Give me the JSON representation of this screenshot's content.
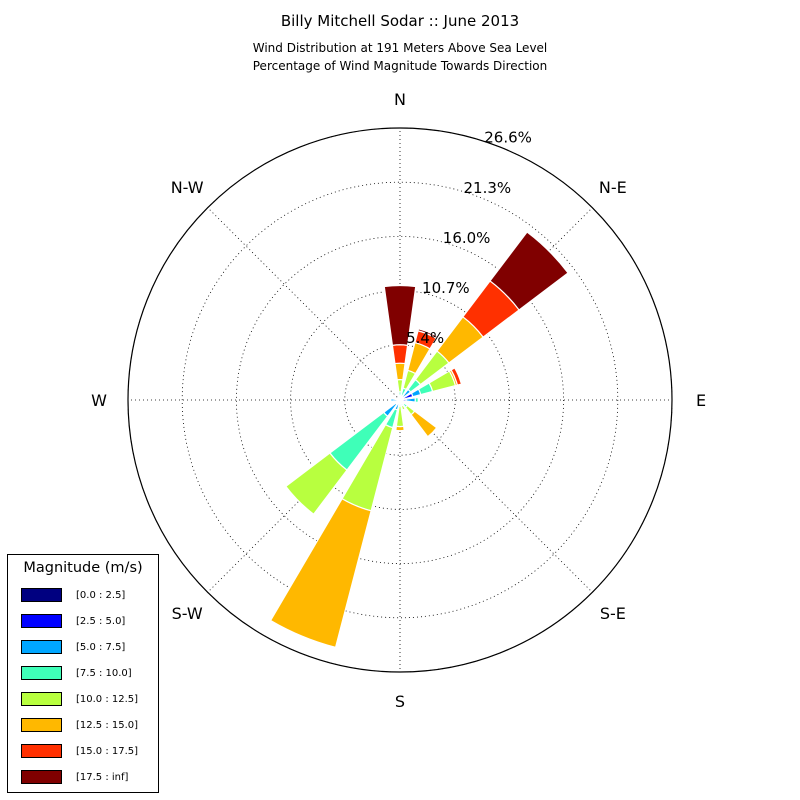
{
  "titles": {
    "main": "Billy Mitchell Sodar :: June 2013",
    "sub1": "Wind Distribution at 191 Meters Above Sea Level",
    "sub2": "Percentage of Wind Magnitude Towards Direction"
  },
  "chart_data": {
    "type": "windrose",
    "rmax": 26.6,
    "radial_ticks": [
      "5.4%",
      "10.7%",
      "16.0%",
      "21.3%",
      "26.6%"
    ],
    "radial_tick_values": [
      5.4,
      10.7,
      16.0,
      21.3,
      26.6
    ],
    "direction_labels": [
      "N",
      "N-E",
      "E",
      "S-E",
      "S",
      "S-W",
      "W",
      "N-W"
    ],
    "legend_title": "Magnitude (m/s)",
    "bins": [
      "[0.0 : 2.5]",
      "[2.5 : 5.0]",
      "[5.0 : 7.5]",
      "[7.5 : 10.0]",
      "[10.0 : 12.5]",
      "[12.5 : 15.0]",
      "[15.0 : 17.5]",
      "[17.5 : inf]"
    ],
    "bin_colors": [
      "#000080",
      "#0000ff",
      "#00a6ff",
      "#3fffb8",
      "#b8ff3f",
      "#ffb800",
      "#ff3000",
      "#800000"
    ],
    "direction_angles": [
      0,
      22.5,
      45,
      67.5,
      90,
      112.5,
      135,
      157.5,
      180,
      202.5,
      225,
      247.5,
      270,
      292.5,
      315,
      337.5
    ],
    "cumulative_values": [
      [
        0,
        0.1,
        0.4,
        0.8,
        2.0,
        3.6,
        5.4,
        11.2
      ],
      [
        0,
        0.1,
        0.4,
        1.2,
        3.0,
        5.8,
        7.0,
        7.2
      ],
      [
        0,
        0.3,
        1.3,
        2.5,
        6.0,
        10.2,
        14.6,
        20.6
      ],
      [
        0,
        1.3,
        2.1,
        3.3,
        5.6,
        5.8,
        6.2,
        6.2
      ],
      [
        0,
        0.6,
        1.5,
        1.8,
        1.9,
        1.9,
        1.9,
        1.9
      ],
      [
        0,
        0.2,
        0.3,
        0.3,
        0.3,
        0.3,
        0.3,
        0.3
      ],
      [
        0,
        0.3,
        0.5,
        0.9,
        1.8,
        4.5,
        4.5,
        4.5
      ],
      [
        0,
        0.2,
        0.4,
        0.6,
        1.0,
        1.0,
        1.0,
        1.0
      ],
      [
        0,
        0.3,
        0.4,
        0.6,
        2.6,
        3.0,
        3.0,
        3.0
      ],
      [
        0,
        0.4,
        1.0,
        2.8,
        11.2,
        25.0,
        25.0,
        25.0
      ],
      [
        0,
        0.5,
        2.0,
        8.6,
        14.0,
        14.0,
        14.0,
        14.0
      ],
      [
        0,
        0.1,
        0.2,
        0.3,
        0.3,
        0.3,
        0.3,
        0.3
      ],
      [
        0,
        0.2,
        0.9,
        0.9,
        0.9,
        0.9,
        0.9,
        0.9
      ],
      [
        0,
        0,
        0,
        0,
        0,
        0,
        0,
        0
      ],
      [
        0,
        0,
        0,
        0,
        0,
        0,
        0,
        0
      ],
      [
        0,
        0.1,
        0.2,
        0.3,
        0.3,
        0.3,
        0.3,
        0.3
      ]
    ]
  }
}
